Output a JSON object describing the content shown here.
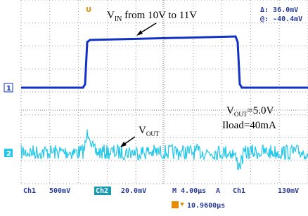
{
  "annotations": {
    "vin": {
      "main": "V",
      "sub": "IN",
      "rest": " from 10V to 11V"
    },
    "vout_setting": {
      "main": "V",
      "sub": "OUT",
      "rest": "=5.0V"
    },
    "iload": "Iload=40mA",
    "vout_label": {
      "main": "V",
      "sub": "OUT"
    }
  },
  "cursor": {
    "delta": "Δ: 36.0mV",
    "at": "@: -40.4mV"
  },
  "markers": {
    "ch1": "1",
    "ch2": "2",
    "trigger": "U"
  },
  "status": {
    "ch1": "Ch1",
    "ch1_scale": "500mV",
    "ch2": "Ch2",
    "ch2_scale": "20.0mV",
    "timebase": "M 4.00µs",
    "trigger_mode": "A",
    "trigger_source": "Ch1",
    "trigger_level": "130mV",
    "trigger_position": "10.9600µs"
  }
}
